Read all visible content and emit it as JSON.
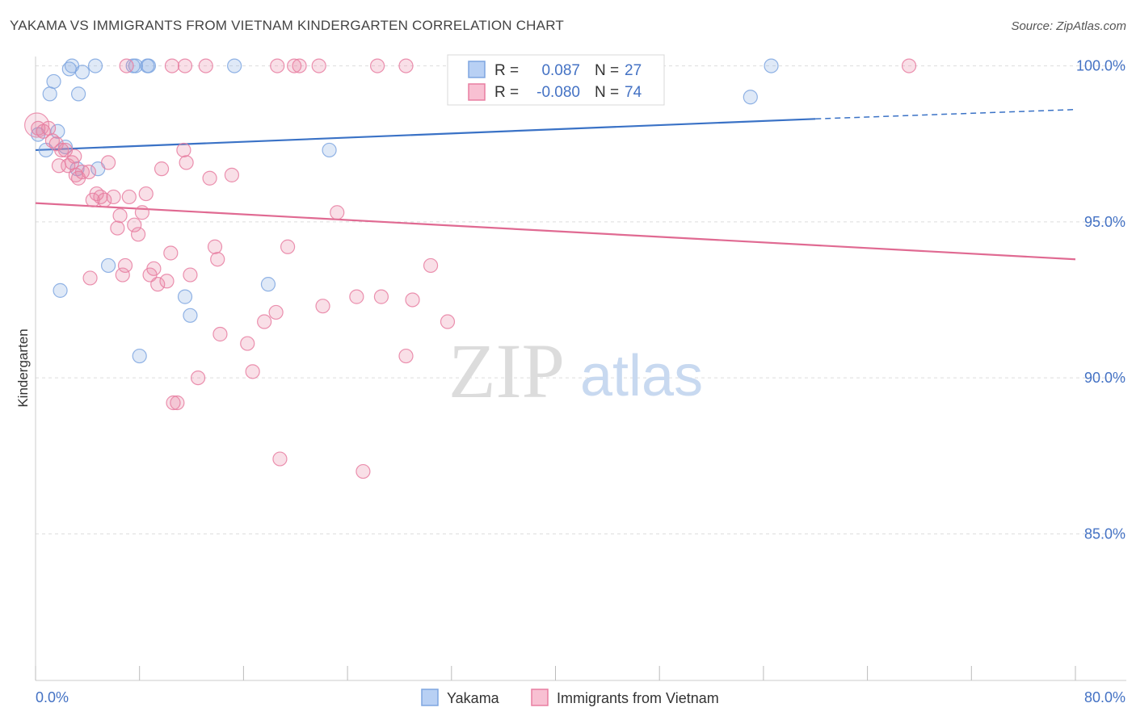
{
  "title": "YAKAMA VS IMMIGRANTS FROM VIETNAM KINDERGARTEN CORRELATION CHART",
  "source": "Source: ZipAtlas.com",
  "watermark": {
    "zip": "ZIP",
    "atlas": "atlas"
  },
  "chart_data": {
    "type": "scatter",
    "xlabel": "",
    "ylabel": "Kindergarten",
    "xlim": [
      0,
      80
    ],
    "ylim": [
      80.3,
      100.3
    ],
    "x_tick_labels": {
      "left": "0.0%",
      "right": "80.0%"
    },
    "y_ticks": [
      {
        "value": 100,
        "label": "100.0%"
      },
      {
        "value": 95,
        "label": "95.0%"
      },
      {
        "value": 90,
        "label": "90.0%"
      },
      {
        "value": 85,
        "label": "85.0%"
      }
    ],
    "legend": {
      "r_label": "R =",
      "n_label": "N =",
      "entries": [
        {
          "name": "Yakama",
          "r": "0.087",
          "n": "27",
          "color": "#7ea6e0",
          "fill": "#b8d0f4"
        },
        {
          "name": "Immigrants from Vietnam",
          "r": "-0.080",
          "n": "74",
          "color": "#e87ea1",
          "fill": "#f8c0d2"
        }
      ]
    },
    "series": [
      {
        "name": "Yakama",
        "color": "#7ea6e0",
        "trend": {
          "x0": 0,
          "y0": 97.3,
          "x1": 60,
          "y1": 98.3,
          "dash_x1": 80,
          "dash_y1": 98.6,
          "color": "#3a72c6"
        },
        "points": [
          [
            0.2,
            97.8
          ],
          [
            0.8,
            97.3
          ],
          [
            1.1,
            99.1
          ],
          [
            1.4,
            99.5
          ],
          [
            1.7,
            97.9
          ],
          [
            2.6,
            99.9
          ],
          [
            2.8,
            100.0
          ],
          [
            3.2,
            96.7
          ],
          [
            3.3,
            99.1
          ],
          [
            3.6,
            99.8
          ],
          [
            4.6,
            100.0
          ],
          [
            4.8,
            96.7
          ],
          [
            5.6,
            93.6
          ],
          [
            7.5,
            100.0
          ],
          [
            7.7,
            100.0
          ],
          [
            8.6,
            100.0
          ],
          [
            8.7,
            100.0
          ],
          [
            11.5,
            92.6
          ],
          [
            11.9,
            92.0
          ],
          [
            15.3,
            100.0
          ],
          [
            17.9,
            93.0
          ],
          [
            22.6,
            97.3
          ],
          [
            8.0,
            90.7
          ],
          [
            1.9,
            92.8
          ],
          [
            55.0,
            99.0
          ],
          [
            56.6,
            100.0
          ],
          [
            2.3,
            97.4
          ]
        ]
      },
      {
        "name": "Immigrants from Vietnam",
        "color": "#e87ea1",
        "trend": {
          "x0": 0,
          "y0": 95.6,
          "x1": 80,
          "y1": 93.8,
          "color": "#e06a92"
        },
        "points": [
          [
            0.2,
            98.0
          ],
          [
            0.6,
            97.9
          ],
          [
            1.0,
            98.0
          ],
          [
            1.3,
            97.6
          ],
          [
            1.6,
            97.5
          ],
          [
            2.0,
            97.3
          ],
          [
            2.3,
            97.3
          ],
          [
            2.5,
            96.8
          ],
          [
            2.8,
            96.9
          ],
          [
            3.1,
            96.5
          ],
          [
            3.3,
            96.4
          ],
          [
            3.6,
            96.6
          ],
          [
            4.1,
            96.6
          ],
          [
            4.4,
            95.7
          ],
          [
            4.7,
            95.9
          ],
          [
            5.0,
            95.8
          ],
          [
            5.3,
            95.7
          ],
          [
            5.6,
            96.9
          ],
          [
            6.0,
            95.8
          ],
          [
            6.3,
            94.8
          ],
          [
            6.5,
            95.2
          ],
          [
            6.9,
            93.6
          ],
          [
            7.2,
            95.8
          ],
          [
            7.6,
            94.9
          ],
          [
            7.9,
            94.6
          ],
          [
            8.2,
            95.3
          ],
          [
            8.5,
            95.9
          ],
          [
            8.8,
            93.3
          ],
          [
            9.1,
            93.5
          ],
          [
            9.4,
            93.0
          ],
          [
            9.7,
            96.7
          ],
          [
            10.1,
            93.1
          ],
          [
            10.4,
            94.0
          ],
          [
            10.6,
            89.2
          ],
          [
            10.9,
            89.2
          ],
          [
            11.4,
            97.3
          ],
          [
            11.6,
            96.9
          ],
          [
            11.9,
            93.3
          ],
          [
            12.5,
            90.0
          ],
          [
            13.4,
            96.4
          ],
          [
            13.8,
            94.2
          ],
          [
            14.0,
            93.8
          ],
          [
            14.2,
            91.4
          ],
          [
            15.1,
            96.5
          ],
          [
            16.3,
            91.1
          ],
          [
            16.7,
            90.2
          ],
          [
            17.6,
            91.8
          ],
          [
            18.5,
            92.1
          ],
          [
            18.8,
            87.4
          ],
          [
            19.4,
            94.2
          ],
          [
            22.1,
            92.3
          ],
          [
            23.2,
            95.3
          ],
          [
            24.7,
            92.6
          ],
          [
            25.2,
            87.0
          ],
          [
            26.6,
            92.6
          ],
          [
            28.5,
            90.7
          ],
          [
            29.0,
            92.5
          ],
          [
            30.4,
            93.6
          ],
          [
            31.7,
            91.8
          ],
          [
            10.5,
            100.0
          ],
          [
            11.5,
            100.0
          ],
          [
            13.1,
            100.0
          ],
          [
            18.6,
            100.0
          ],
          [
            19.9,
            100.0
          ],
          [
            20.3,
            100.0
          ],
          [
            26.3,
            100.0
          ],
          [
            28.5,
            100.0
          ],
          [
            67.2,
            100.0
          ],
          [
            7.0,
            100.0
          ],
          [
            3.0,
            97.1
          ],
          [
            6.7,
            93.3
          ],
          [
            4.2,
            93.2
          ],
          [
            21.8,
            100.0
          ],
          [
            1.8,
            96.8
          ]
        ]
      }
    ]
  }
}
